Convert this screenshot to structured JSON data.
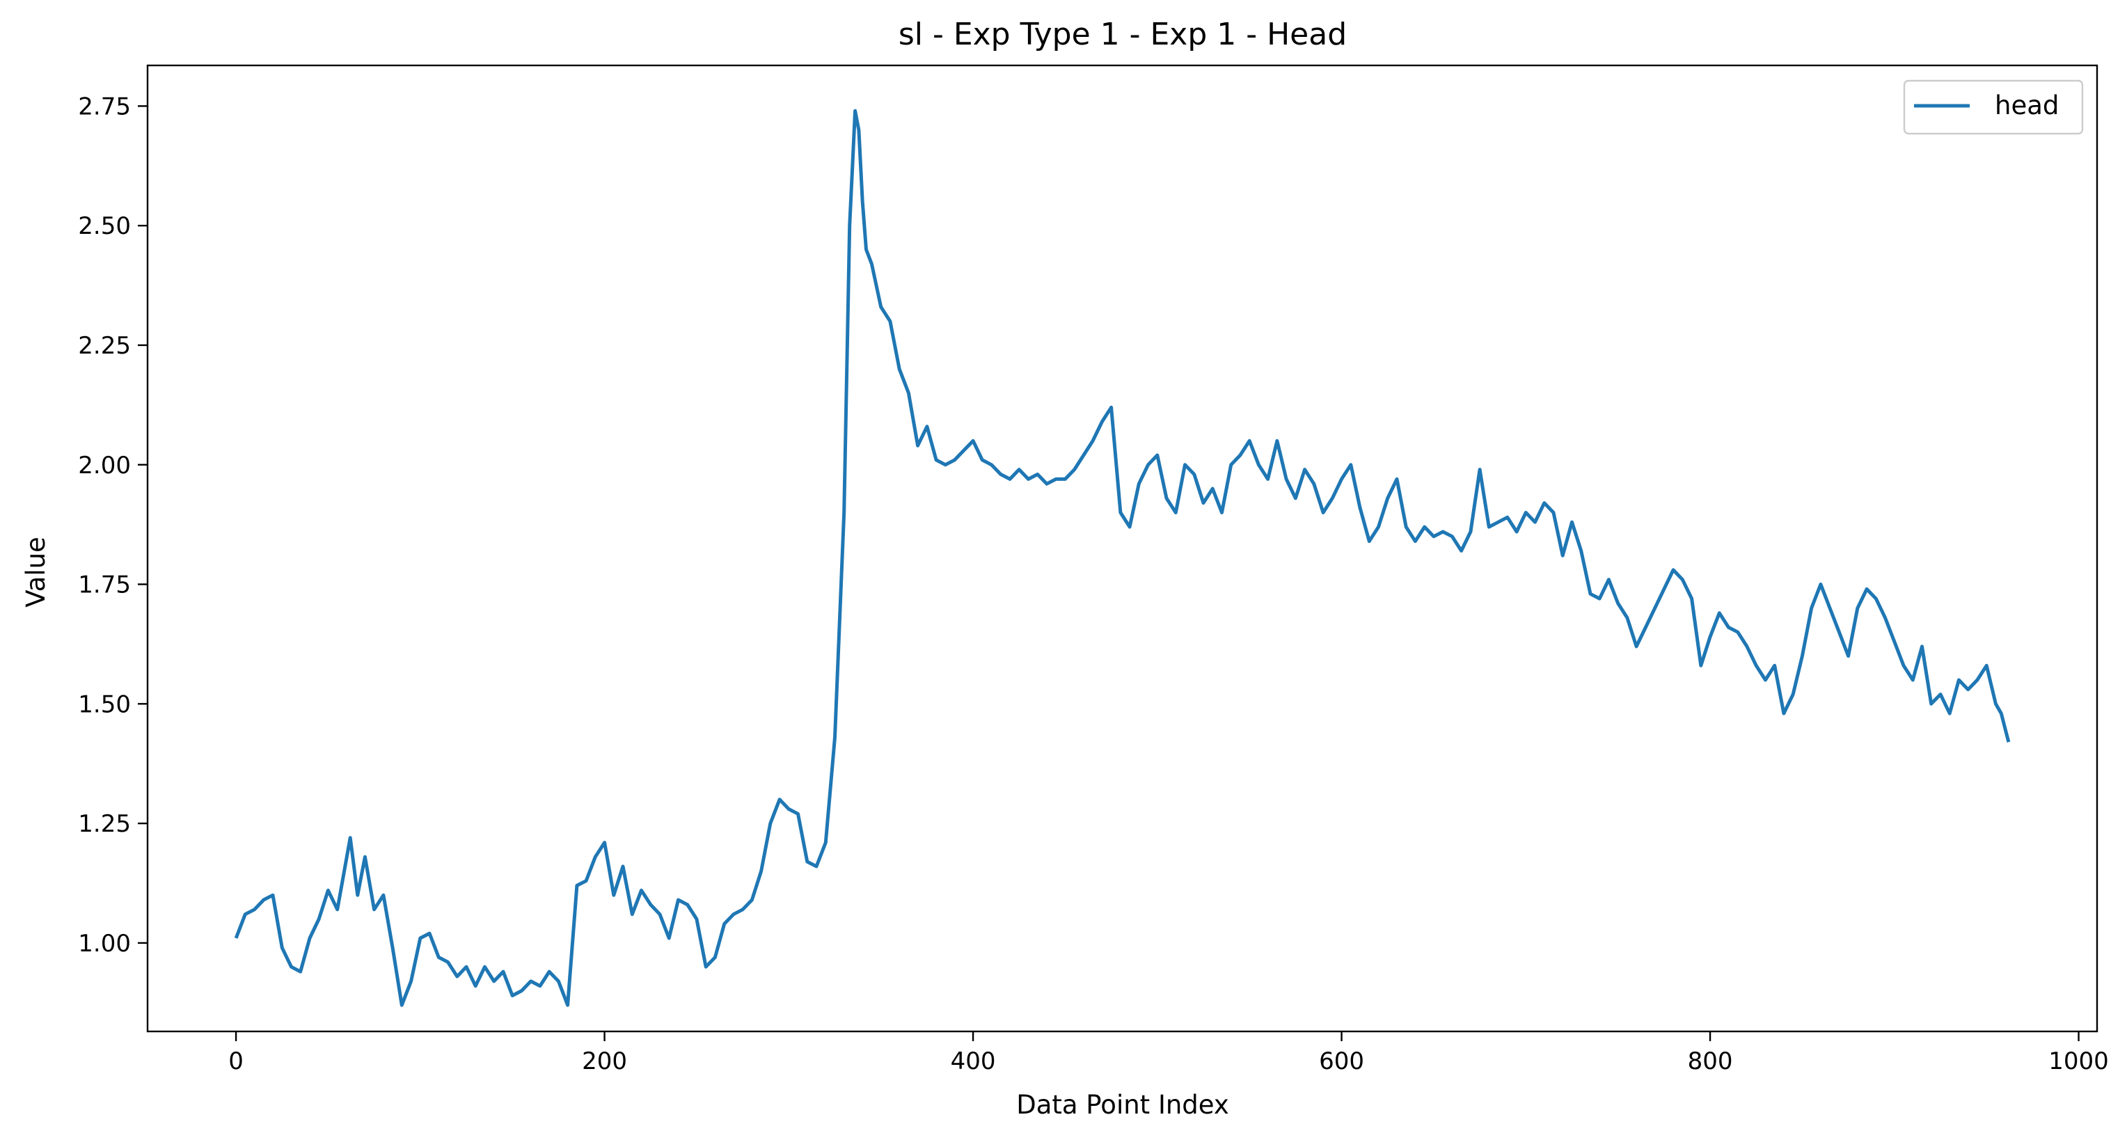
{
  "colors": {
    "line": "#1f77b4",
    "axis": "#000000",
    "background": "#ffffff",
    "legend_border": "#cccccc"
  },
  "chart_data": {
    "type": "line",
    "title": "sl - Exp Type 1 - Exp 1 - Head",
    "xlabel": "Data Point Index",
    "ylabel": "Value",
    "xlim": [
      -48,
      1010
    ],
    "ylim": [
      0.815,
      2.835
    ],
    "grid": false,
    "legend_position": "top-right",
    "x_ticks": [
      0,
      200,
      400,
      600,
      800,
      1000
    ],
    "x_tick_labels": [
      "0",
      "200",
      "400",
      "600",
      "800",
      "1000"
    ],
    "y_ticks": [
      1.0,
      1.25,
      1.5,
      1.75,
      2.0,
      2.25,
      2.5,
      2.75
    ],
    "y_tick_labels": [
      "1.00",
      "1.25",
      "1.50",
      "1.75",
      "2.00",
      "2.25",
      "2.50",
      "2.75"
    ],
    "series": [
      {
        "name": "head",
        "x": [
          0,
          5,
          10,
          15,
          20,
          25,
          30,
          35,
          40,
          45,
          50,
          55,
          62,
          66,
          70,
          75,
          80,
          85,
          90,
          95,
          100,
          105,
          110,
          115,
          120,
          125,
          130,
          135,
          140,
          145,
          150,
          155,
          160,
          165,
          170,
          175,
          180,
          185,
          190,
          195,
          200,
          205,
          210,
          215,
          220,
          225,
          230,
          235,
          240,
          245,
          250,
          255,
          260,
          265,
          270,
          275,
          280,
          285,
          290,
          295,
          300,
          305,
          310,
          315,
          320,
          325,
          330,
          333,
          336,
          338,
          340,
          342,
          345,
          350,
          355,
          360,
          365,
          370,
          375,
          380,
          385,
          390,
          395,
          400,
          405,
          410,
          415,
          420,
          425,
          430,
          435,
          440,
          445,
          450,
          455,
          460,
          465,
          470,
          475,
          480,
          485,
          490,
          495,
          500,
          505,
          510,
          515,
          520,
          525,
          530,
          535,
          540,
          545,
          550,
          555,
          560,
          565,
          570,
          575,
          580,
          585,
          590,
          595,
          600,
          605,
          610,
          615,
          620,
          625,
          630,
          635,
          640,
          645,
          650,
          655,
          660,
          665,
          670,
          675,
          680,
          685,
          690,
          695,
          700,
          705,
          710,
          715,
          720,
          725,
          730,
          735,
          740,
          745,
          750,
          755,
          760,
          765,
          770,
          775,
          780,
          785,
          790,
          795,
          800,
          805,
          810,
          815,
          820,
          825,
          830,
          835,
          840,
          845,
          850,
          855,
          860,
          865,
          870,
          875,
          880,
          885,
          890,
          895,
          900,
          905,
          910,
          915,
          920,
          925,
          930,
          935,
          940,
          945,
          950,
          955,
          958,
          962
        ],
        "values": [
          1.01,
          1.06,
          1.07,
          1.09,
          1.1,
          0.99,
          0.95,
          0.94,
          1.01,
          1.05,
          1.11,
          1.07,
          1.22,
          1.1,
          1.18,
          1.07,
          1.1,
          0.99,
          0.87,
          0.92,
          1.01,
          1.02,
          0.97,
          0.96,
          0.93,
          0.95,
          0.91,
          0.95,
          0.92,
          0.94,
          0.89,
          0.9,
          0.92,
          0.91,
          0.94,
          0.92,
          0.87,
          1.12,
          1.13,
          1.18,
          1.21,
          1.1,
          1.16,
          1.06,
          1.11,
          1.08,
          1.06,
          1.01,
          1.09,
          1.08,
          1.05,
          0.95,
          0.97,
          1.04,
          1.06,
          1.07,
          1.09,
          1.15,
          1.25,
          1.3,
          1.28,
          1.27,
          1.17,
          1.16,
          1.21,
          1.43,
          1.9,
          2.5,
          2.74,
          2.7,
          2.55,
          2.45,
          2.42,
          2.33,
          2.3,
          2.2,
          2.15,
          2.04,
          2.08,
          2.01,
          2.0,
          2.01,
          2.03,
          2.05,
          2.01,
          2.0,
          1.98,
          1.97,
          1.99,
          1.97,
          1.98,
          1.96,
          1.97,
          1.97,
          1.99,
          2.02,
          2.05,
          2.09,
          2.12,
          1.9,
          1.87,
          1.96,
          2.0,
          2.02,
          1.93,
          1.9,
          2.0,
          1.98,
          1.92,
          1.95,
          1.9,
          2.0,
          2.02,
          2.05,
          2.0,
          1.97,
          2.05,
          1.97,
          1.93,
          1.99,
          1.96,
          1.9,
          1.93,
          1.97,
          2.0,
          1.91,
          1.84,
          1.87,
          1.93,
          1.97,
          1.87,
          1.84,
          1.87,
          1.85,
          1.86,
          1.85,
          1.82,
          1.86,
          1.99,
          1.87,
          1.88,
          1.89,
          1.86,
          1.9,
          1.88,
          1.92,
          1.9,
          1.81,
          1.88,
          1.82,
          1.73,
          1.72,
          1.76,
          1.71,
          1.68,
          1.62,
          1.66,
          1.7,
          1.74,
          1.78,
          1.76,
          1.72,
          1.58,
          1.64,
          1.69,
          1.66,
          1.65,
          1.62,
          1.58,
          1.55,
          1.58,
          1.48,
          1.52,
          1.6,
          1.7,
          1.75,
          1.7,
          1.65,
          1.6,
          1.7,
          1.74,
          1.72,
          1.68,
          1.63,
          1.58,
          1.55,
          1.62,
          1.5,
          1.52,
          1.48,
          1.55,
          1.53,
          1.55,
          1.58,
          1.5,
          1.48,
          1.42
        ]
      }
    ]
  }
}
